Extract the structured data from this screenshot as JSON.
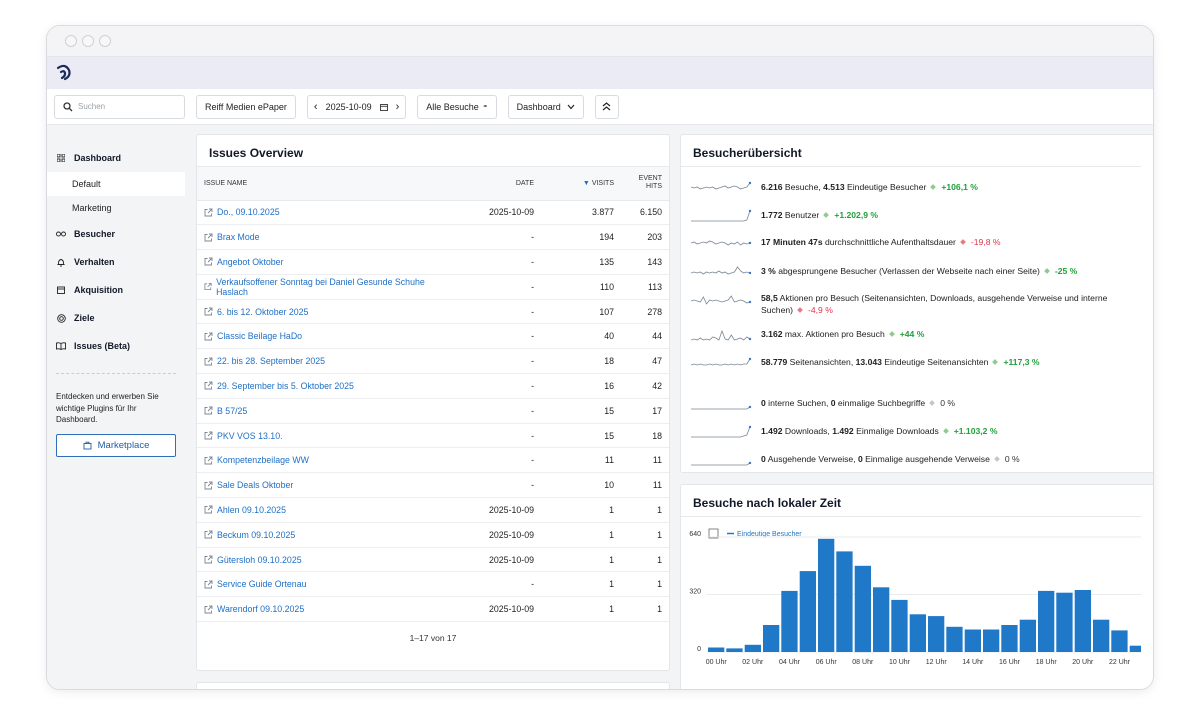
{
  "toolbar": {
    "search_placeholder": "Suchen",
    "site": "Reiff Medien ePaper",
    "date": "2025-10-09",
    "segment": "Alle Besuche",
    "dashboard": "Dashboard"
  },
  "sidebar": {
    "items": [
      {
        "label": "Dashboard",
        "icon": "grid-icon"
      },
      {
        "label": "Besucher",
        "icon": "glasses-icon"
      },
      {
        "label": "Verhalten",
        "icon": "bell-icon"
      },
      {
        "label": "Akquisition",
        "icon": "calendar-icon"
      },
      {
        "label": "Ziele",
        "icon": "target-icon"
      },
      {
        "label": "Issues (Beta)",
        "icon": "book-icon"
      }
    ],
    "subitems": [
      "Default",
      "Marketing"
    ],
    "promo": "Entdecken und erwerben Sie wichtige Plugins für Ihr Dashboard.",
    "marketplace": "Marketplace"
  },
  "issues": {
    "title": "Issues Overview",
    "headers": {
      "name": "Issue Name",
      "date": "Date",
      "visits": "Visits",
      "event_hits": "Event Hits"
    },
    "rows": [
      {
        "name": "Do., 09.10.2025",
        "date": "2025-10-09",
        "visits": "3.877",
        "hits": "6.150"
      },
      {
        "name": "Brax Mode",
        "date": "-",
        "visits": "194",
        "hits": "203"
      },
      {
        "name": "Angebot Oktober",
        "date": "-",
        "visits": "135",
        "hits": "143"
      },
      {
        "name": "Verkaufsoffener Sonntag bei Daniel Gesunde Schuhe Haslach",
        "date": "-",
        "visits": "110",
        "hits": "113"
      },
      {
        "name": "6. bis 12. Oktober 2025",
        "date": "-",
        "visits": "107",
        "hits": "278"
      },
      {
        "name": "Classic Beilage HaDo",
        "date": "-",
        "visits": "40",
        "hits": "44"
      },
      {
        "name": "22. bis 28. September 2025",
        "date": "-",
        "visits": "18",
        "hits": "47"
      },
      {
        "name": "29. September bis 5. Oktober 2025",
        "date": "-",
        "visits": "16",
        "hits": "42"
      },
      {
        "name": "B 57/25",
        "date": "-",
        "visits": "15",
        "hits": "17"
      },
      {
        "name": "PKV VOS 13.10.",
        "date": "-",
        "visits": "15",
        "hits": "18"
      },
      {
        "name": "Kompetenzbeilage WW",
        "date": "-",
        "visits": "11",
        "hits": "11"
      },
      {
        "name": "Sale Deals Oktober",
        "date": "-",
        "visits": "10",
        "hits": "11"
      },
      {
        "name": "Ahlen 09.10.2025",
        "date": "2025-10-09",
        "visits": "1",
        "hits": "1"
      },
      {
        "name": "Beckum 09.10.2025",
        "date": "2025-10-09",
        "visits": "1",
        "hits": "1"
      },
      {
        "name": "Gütersloh 09.10.2025",
        "date": "2025-10-09",
        "visits": "1",
        "hits": "1"
      },
      {
        "name": "Service Guide Ortenau",
        "date": "-",
        "visits": "1",
        "hits": "1"
      },
      {
        "name": "Warendorf 09.10.2025",
        "date": "2025-10-09",
        "visits": "1",
        "hits": "1"
      }
    ],
    "pager": "1–17 von 17"
  },
  "overview": {
    "title": "Besucherübersicht",
    "kpis": [
      {
        "b1": "6.216",
        "t1": " Besuche, ",
        "b2": "4.513",
        "t2": " Eindeutige Besucher",
        "change": "+106,1 %",
        "trend": "pos"
      },
      {
        "b1": "1.772",
        "t1": " Benutzer",
        "b2": "",
        "t2": "",
        "change": "+1.202,9 %",
        "trend": "pos"
      },
      {
        "b1": "17 Minuten 47s",
        "t1": " durchschnittliche Aufenthaltsdauer",
        "b2": "",
        "t2": "",
        "change": "-19,8 %",
        "trend": "neg"
      },
      {
        "b1": "3 %",
        "t1": " abgesprungene Besucher (Verlassen der Webseite nach einer Seite)",
        "b2": "",
        "t2": "",
        "change": "-25 %",
        "trend": "pos"
      },
      {
        "b1": "58,5",
        "t1": " Aktionen pro Besuch (Seitenansichten, Downloads, ausgehende Verweise und interne Suchen)",
        "b2": "",
        "t2": "",
        "change": "-4,9 %",
        "trend": "neg"
      },
      {
        "b1": "3.162",
        "t1": " max. Aktionen pro Besuch",
        "b2": "",
        "t2": "",
        "change": "+44 %",
        "trend": "pos"
      },
      {
        "b1": "58.779",
        "t1": " Seitenansichten, ",
        "b2": "13.043",
        "t2": " Eindeutige Seitenansichten",
        "change": "+117,3 %",
        "trend": "pos"
      },
      {
        "b1": "0",
        "t1": " interne Suchen, ",
        "b2": "0",
        "t2": " einmalige Suchbegriffe",
        "change": "0 %",
        "trend": "neu"
      },
      {
        "b1": "1.492",
        "t1": " Downloads, ",
        "b2": "1.492",
        "t2": " Einmalige Downloads",
        "change": "+1.103,2 %",
        "trend": "pos"
      },
      {
        "b1": "0",
        "t1": " Ausgehende Verweise, ",
        "b2": "0",
        "t2": " Einmalige ausgehende Verweise",
        "change": "0 %",
        "trend": "neu"
      }
    ]
  },
  "localtime": {
    "title": "Besuche nach lokaler Zeit",
    "legend": "Eindeutige Besucher",
    "color": "#1f78c8"
  },
  "chart_data": {
    "type": "bar",
    "title": "Besuche nach lokaler Zeit",
    "series": [
      {
        "name": "Eindeutige Besucher",
        "values": [
          25,
          20,
          40,
          150,
          340,
          450,
          630,
          560,
          480,
          360,
          290,
          210,
          200,
          140,
          125,
          125,
          150,
          180,
          340,
          330,
          345,
          180,
          120,
          35
        ]
      }
    ],
    "categories": [
      "00 Uhr",
      "01 Uhr",
      "02 Uhr",
      "03 Uhr",
      "04 Uhr",
      "05 Uhr",
      "06 Uhr",
      "07 Uhr",
      "08 Uhr",
      "09 Uhr",
      "10 Uhr",
      "11 Uhr",
      "12 Uhr",
      "13 Uhr",
      "14 Uhr",
      "15 Uhr",
      "16 Uhr",
      "17 Uhr",
      "18 Uhr",
      "19 Uhr",
      "20 Uhr",
      "21 Uhr",
      "22 Uhr",
      "23 Uhr"
    ],
    "xticks": [
      "00 Uhr",
      "02 Uhr",
      "04 Uhr",
      "06 Uhr",
      "08 Uhr",
      "10 Uhr",
      "12 Uhr",
      "14 Uhr",
      "16 Uhr",
      "18 Uhr",
      "20 Uhr",
      "22 Uhr"
    ],
    "yticks": [
      "0",
      "320",
      "640"
    ],
    "ylim": [
      0,
      640
    ]
  }
}
